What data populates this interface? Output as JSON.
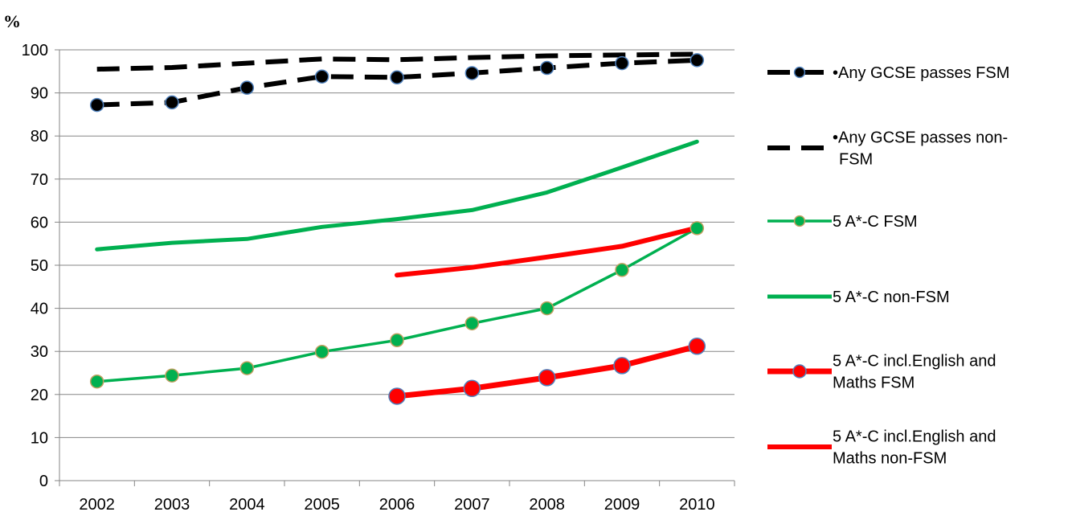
{
  "chart_data": {
    "type": "line",
    "title": "",
    "xlabel": "",
    "ylabel": "%",
    "ylim": [
      0,
      100
    ],
    "ytick_step": 10,
    "grid": true,
    "legend_position": "right",
    "categories": [
      "2002",
      "2003",
      "2004",
      "2005",
      "2006",
      "2007",
      "2008",
      "2009",
      "2010"
    ],
    "series": [
      {
        "name": "Any GCSE passes FSM",
        "color": "#000000",
        "style": "dashed",
        "markers": true,
        "values": [
          87.2,
          87.8,
          91.2,
          93.8,
          93.6,
          94.6,
          95.8,
          96.9,
          97.6
        ]
      },
      {
        "name": "Any GCSE passes non-FSM",
        "color": "#000000",
        "style": "dashed",
        "markers": false,
        "values": [
          95.5,
          95.9,
          96.9,
          97.9,
          97.7,
          98.2,
          98.6,
          98.8,
          99.0
        ]
      },
      {
        "name": "5 A*-C FSM",
        "color": "#00B050",
        "style": "solid-thin",
        "markers": true,
        "values": [
          23.0,
          24.4,
          26.1,
          29.9,
          32.6,
          36.5,
          40.0,
          48.9,
          58.6
        ]
      },
      {
        "name": "5 A*-C non-FSM",
        "color": "#00B050",
        "style": "solid",
        "markers": false,
        "values": [
          53.7,
          55.2,
          56.1,
          58.9,
          60.7,
          62.8,
          66.9,
          72.7,
          78.7
        ]
      },
      {
        "name": "5 A*-C incl.English and Maths FSM",
        "color": "#FF0000",
        "style": "solid",
        "markers": true,
        "values": [
          null,
          null,
          null,
          null,
          19.6,
          21.4,
          23.9,
          26.7,
          31.2
        ]
      },
      {
        "name": "5 A*-C incl.English and Maths non-FSM",
        "color": "#FF0000",
        "style": "solid",
        "markers": false,
        "values": [
          null,
          null,
          null,
          null,
          47.7,
          49.5,
          51.9,
          54.4,
          58.7
        ]
      }
    ]
  }
}
